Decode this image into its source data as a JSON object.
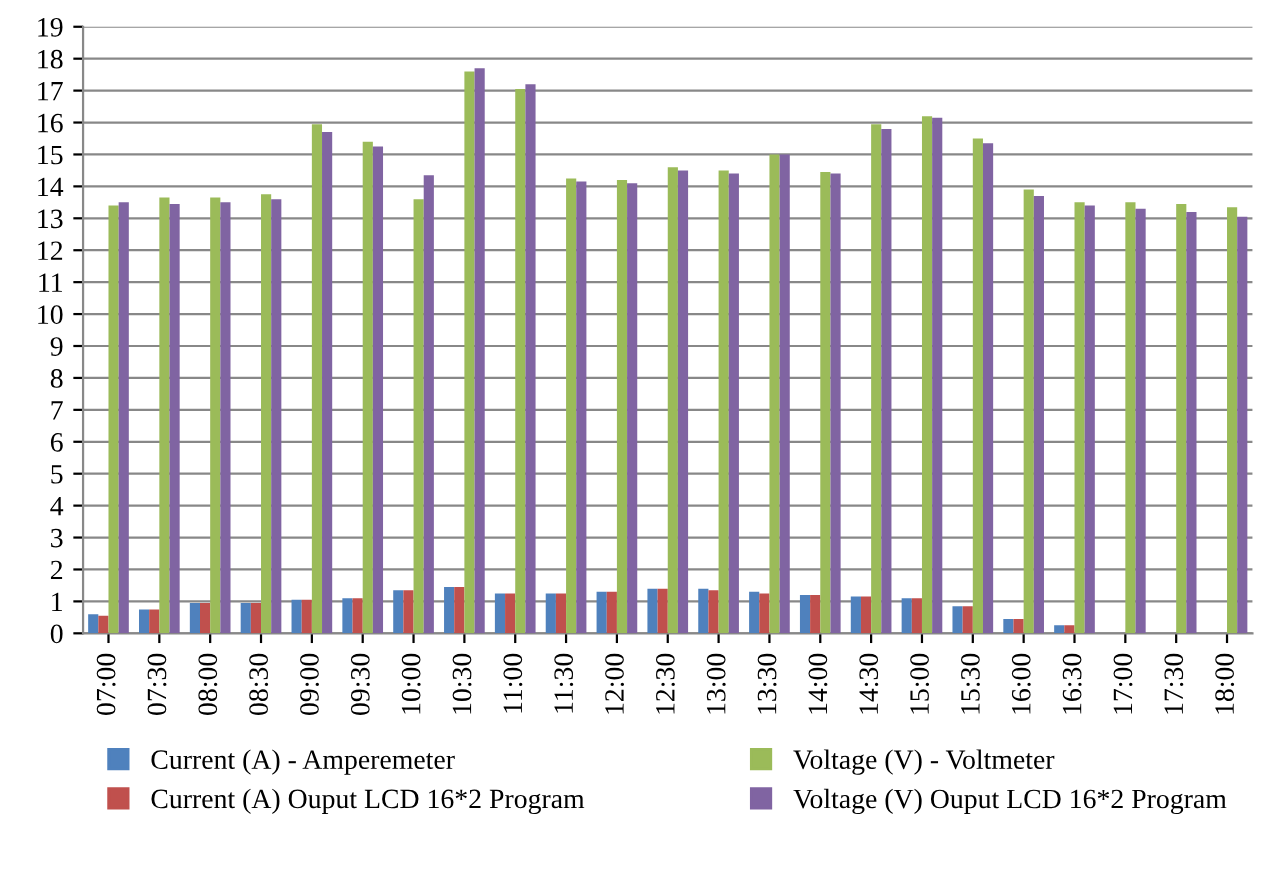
{
  "chart_data": {
    "type": "bar",
    "categories": [
      "07:00",
      "07:30",
      "08:00",
      "08:30",
      "09:00",
      "09:30",
      "10:00",
      "10:30",
      "11:00",
      "11:30",
      "12:00",
      "12:30",
      "13:00",
      "13:30",
      "14:00",
      "14:30",
      "15:00",
      "15:30",
      "16:00",
      "16:30",
      "17:00",
      "17:30",
      "18:00"
    ],
    "series": [
      {
        "name": "Current (A) - Amperemeter",
        "color": "#4f81bd",
        "values": [
          0.6,
          0.75,
          0.95,
          0.95,
          1.05,
          1.1,
          1.35,
          1.45,
          1.25,
          1.25,
          1.3,
          1.4,
          1.4,
          1.3,
          1.2,
          1.15,
          1.1,
          0.85,
          0.45,
          0.25,
          null,
          null,
          0
        ]
      },
      {
        "name": "Current (A) Ouput LCD 16*2 Program",
        "color": "#c0504d",
        "values": [
          0.55,
          0.75,
          0.95,
          0.95,
          1.05,
          1.1,
          1.35,
          1.45,
          1.25,
          1.25,
          1.3,
          1.4,
          1.35,
          1.25,
          1.2,
          1.15,
          1.1,
          0.85,
          0.45,
          0.25,
          0,
          0,
          0
        ]
      },
      {
        "name": "Voltage (V) - Voltmeter",
        "color": "#9bbb59",
        "values": [
          13.4,
          13.65,
          13.65,
          13.75,
          15.95,
          15.4,
          13.6,
          17.6,
          17.05,
          14.25,
          14.2,
          14.6,
          14.5,
          15.0,
          14.45,
          15.95,
          16.2,
          15.5,
          13.9,
          13.5,
          13.5,
          13.45,
          13.35
        ]
      },
      {
        "name": "Voltage (V) Ouput LCD 16*2 Program",
        "color": "#8064a2",
        "values": [
          13.5,
          13.45,
          13.5,
          13.6,
          15.7,
          15.25,
          14.35,
          17.7,
          17.2,
          14.15,
          14.1,
          14.5,
          14.4,
          15.0,
          14.4,
          15.8,
          16.15,
          15.35,
          13.7,
          13.4,
          13.3,
          13.2,
          13.05
        ]
      }
    ],
    "ylim": [
      0,
      19
    ],
    "yticks": [
      0,
      1,
      2,
      3,
      4,
      5,
      6,
      7,
      8,
      9,
      10,
      11,
      12,
      13,
      14,
      15,
      16,
      17,
      18,
      19
    ],
    "grid": "y",
    "legend": "bottom"
  }
}
